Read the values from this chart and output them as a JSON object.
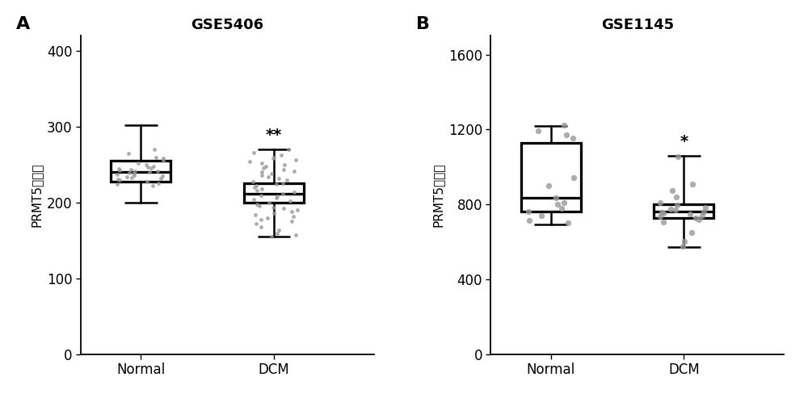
{
  "panel_A": {
    "title": "GSE5406",
    "panel_label": "A",
    "ylabel": "PRMT5表达量",
    "categories": [
      "Normal",
      "DCM"
    ],
    "ylim": [
      0,
      420
    ],
    "yticks": [
      0,
      100,
      200,
      300,
      400
    ],
    "normal_box": {
      "median": 240,
      "q1": 228,
      "q3": 255,
      "whislo": 200,
      "whishi": 302
    },
    "dcm_box": {
      "median": 212,
      "q1": 200,
      "q3": 226,
      "whislo": 155,
      "whishi": 270
    },
    "normal_dots": [
      270,
      265,
      260,
      258,
      255,
      252,
      250,
      248,
      247,
      246,
      245,
      244,
      243,
      242,
      241,
      240,
      239,
      238,
      237,
      236,
      235,
      234,
      233,
      232,
      231,
      230,
      228,
      226,
      224,
      222
    ],
    "dcm_dots": [
      270,
      266,
      263,
      260,
      258,
      256,
      254,
      252,
      250,
      248,
      246,
      244,
      242,
      240,
      238,
      236,
      234,
      232,
      230,
      228,
      226,
      224,
      222,
      220,
      218,
      216,
      214,
      212,
      210,
      208,
      206,
      204,
      202,
      200,
      198,
      196,
      194,
      192,
      190,
      188,
      186,
      184,
      182,
      180,
      178,
      175,
      172,
      168,
      164,
      160,
      157,
      155
    ],
    "significance_dcm": "**"
  },
  "panel_B": {
    "title": "GSE1145",
    "panel_label": "B",
    "ylabel": "PRMT5表达量",
    "categories": [
      "Normal",
      "DCM"
    ],
    "ylim": [
      0,
      1700
    ],
    "yticks": [
      0,
      400,
      800,
      1200,
      1600
    ],
    "normal_box": {
      "median": 835,
      "q1": 762,
      "q3": 1130,
      "whislo": 695,
      "whishi": 1220
    },
    "dcm_box": {
      "median": 760,
      "q1": 728,
      "q3": 802,
      "whislo": 572,
      "whishi": 1058
    },
    "normal_dots": [
      1225,
      1195,
      1170,
      1155,
      945,
      900,
      835,
      810,
      800,
      780,
      760,
      740,
      715,
      700
    ],
    "dcm_dots": [
      1055,
      908,
      875,
      840,
      810,
      798,
      782,
      775,
      770,
      762,
      758,
      755,
      750,
      742,
      735,
      728,
      718,
      705,
      650,
      602,
      578
    ],
    "significance_dcm": "*"
  },
  "box_color": "#ffffff",
  "box_edge_color": "#000000",
  "dot_color": "#999999",
  "dot_size_A": 12,
  "dot_size_B": 28,
  "linewidth": 1.8,
  "background_color": "#ffffff",
  "font_size_title": 13,
  "font_size_tick": 12,
  "font_size_ylabel": 11,
  "font_size_sig": 14,
  "font_size_panel": 16
}
